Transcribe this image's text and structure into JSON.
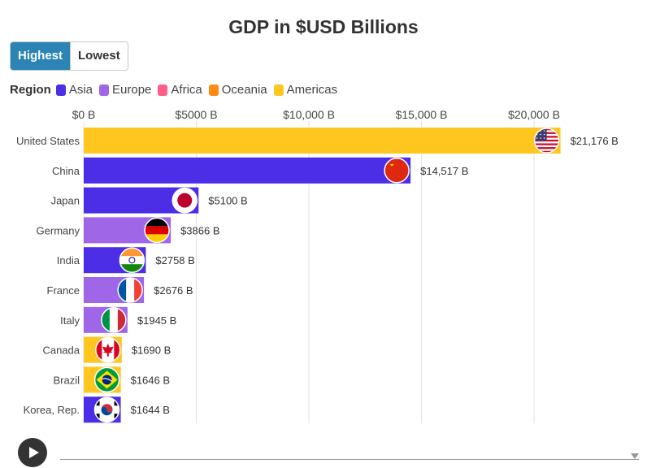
{
  "title": "GDP in $USD Billions",
  "toggle": {
    "highest": "Highest",
    "lowest": "Lowest"
  },
  "legend": {
    "title": "Region",
    "items": [
      {
        "label": "Asia",
        "color": "#4b2ee6"
      },
      {
        "label": "Europe",
        "color": "#a066e8"
      },
      {
        "label": "Africa",
        "color": "#ff5c8a"
      },
      {
        "label": "Oceania",
        "color": "#ff8a14"
      },
      {
        "label": "Americas",
        "color": "#ffc61f"
      }
    ]
  },
  "chart_data": {
    "type": "bar",
    "orientation": "horizontal",
    "title": "GDP in $USD Billions",
    "xlim": [
      0,
      25000
    ],
    "xticks": [
      0,
      5000,
      10000,
      15000,
      20000
    ],
    "xtick_labels": [
      "$0 B",
      "$5000 B",
      "$10,000 B",
      "$15,000 B",
      "$20,000 B"
    ],
    "grid": true,
    "bars": [
      {
        "category": "United States",
        "value": 21176,
        "label": "$21,176 B",
        "region": "Americas",
        "flag": "us-flag-icon"
      },
      {
        "category": "China",
        "value": 14517,
        "label": "$14,517 B",
        "region": "Asia",
        "flag": "china-flag-icon"
      },
      {
        "category": "Japan",
        "value": 5100,
        "label": "$5100 B",
        "region": "Asia",
        "flag": "japan-flag-icon"
      },
      {
        "category": "Germany",
        "value": 3866,
        "label": "$3866 B",
        "region": "Europe",
        "flag": "germany-flag-icon"
      },
      {
        "category": "India",
        "value": 2758,
        "label": "$2758 B",
        "region": "Asia",
        "flag": "india-flag-icon"
      },
      {
        "category": "France",
        "value": 2676,
        "label": "$2676 B",
        "region": "Europe",
        "flag": "france-flag-icon"
      },
      {
        "category": "Italy",
        "value": 1945,
        "label": "$1945 B",
        "region": "Europe",
        "flag": "italy-flag-icon"
      },
      {
        "category": "Canada",
        "value": 1690,
        "label": "$1690 B",
        "region": "Americas",
        "flag": "canada-flag-icon"
      },
      {
        "category": "Brazil",
        "value": 1646,
        "label": "$1646 B",
        "region": "Americas",
        "flag": "brazil-flag-icon"
      },
      {
        "category": "Korea, Rep.",
        "value": 1644,
        "label": "$1644 B",
        "region": "Asia",
        "flag": "south-korea-flag-icon"
      }
    ]
  },
  "controls": {
    "play_icon": "play-icon"
  }
}
